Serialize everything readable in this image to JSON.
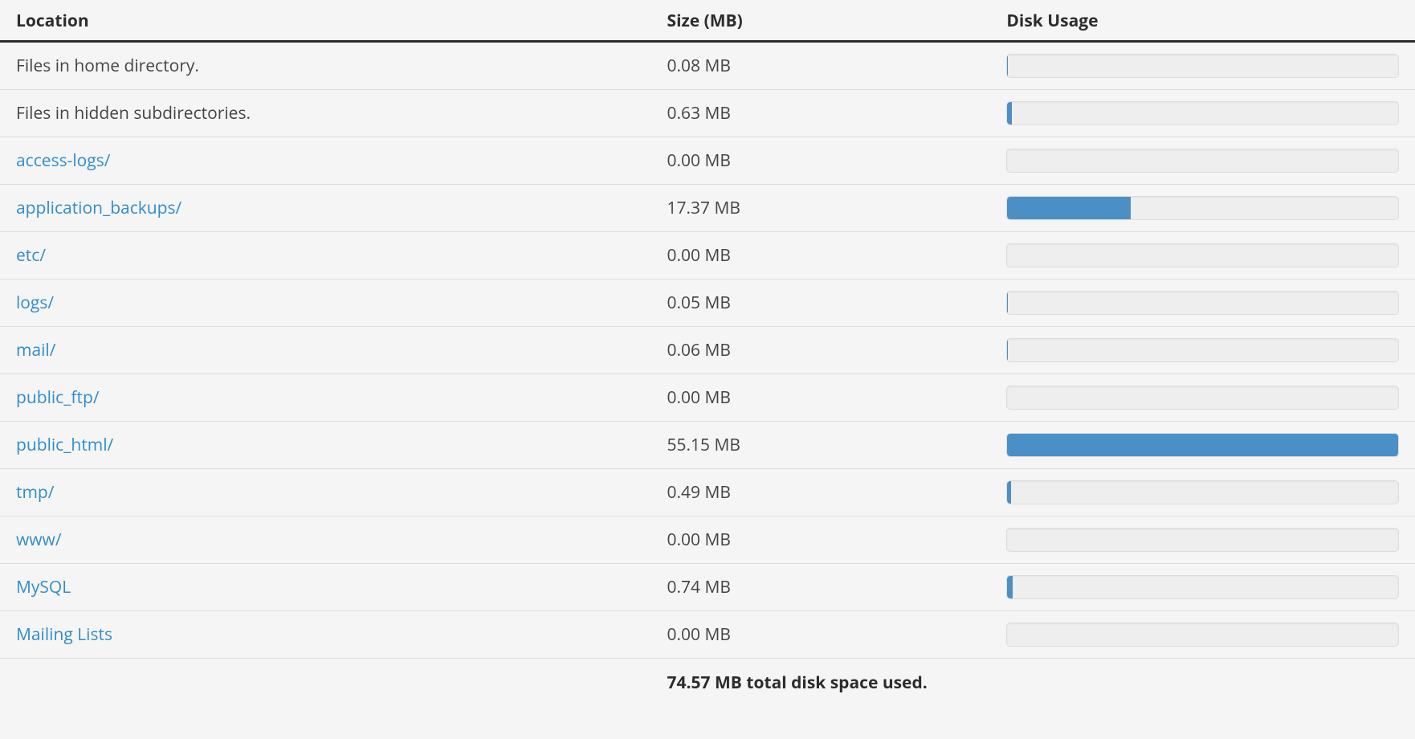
{
  "table": {
    "headers": {
      "location": "Location",
      "size": "Size (MB)",
      "usage": "Disk Usage"
    },
    "max_value_mb": 55.15,
    "bar_fill_color": "#4a90c7",
    "bar_track_color": "#eeeeee",
    "bar_border_color": "#dcdcdc",
    "link_color": "#2f8dcb",
    "rows": [
      {
        "label": "Files in home directory.",
        "is_link": false,
        "size_mb": 0.08,
        "size_text": "0.08 MB"
      },
      {
        "label": "Files in hidden subdirectories.",
        "is_link": false,
        "size_mb": 0.63,
        "size_text": "0.63 MB"
      },
      {
        "label": "access-logs/",
        "is_link": true,
        "size_mb": 0.0,
        "size_text": "0.00 MB"
      },
      {
        "label": "application_backups/",
        "is_link": true,
        "size_mb": 17.37,
        "size_text": "17.37 MB"
      },
      {
        "label": "etc/",
        "is_link": true,
        "size_mb": 0.0,
        "size_text": "0.00 MB"
      },
      {
        "label": "logs/",
        "is_link": true,
        "size_mb": 0.05,
        "size_text": "0.05 MB"
      },
      {
        "label": "mail/",
        "is_link": true,
        "size_mb": 0.06,
        "size_text": "0.06 MB"
      },
      {
        "label": "public_ftp/",
        "is_link": true,
        "size_mb": 0.0,
        "size_text": "0.00 MB"
      },
      {
        "label": "public_html/",
        "is_link": true,
        "size_mb": 55.15,
        "size_text": "55.15 MB"
      },
      {
        "label": "tmp/",
        "is_link": true,
        "size_mb": 0.49,
        "size_text": "0.49 MB"
      },
      {
        "label": "www/",
        "is_link": true,
        "size_mb": 0.0,
        "size_text": "0.00 MB"
      },
      {
        "label": "MySQL",
        "is_link": true,
        "size_mb": 0.74,
        "size_text": "0.74 MB"
      },
      {
        "label": "Mailing Lists",
        "is_link": true,
        "size_mb": 0.0,
        "size_text": "0.00 MB"
      }
    ],
    "total_text": "74.57 MB total disk space used."
  }
}
